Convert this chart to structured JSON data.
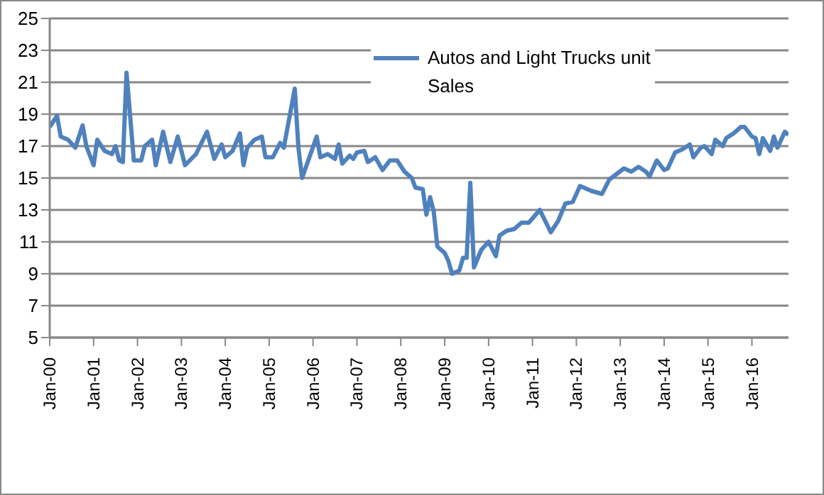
{
  "chart_data": {
    "type": "line",
    "x": [
      "2000-01",
      "2000-03",
      "2000-04",
      "2000-06",
      "2000-08",
      "2000-10",
      "2000-11",
      "2001-01",
      "2001-02",
      "2001-04",
      "2001-06",
      "2001-07",
      "2001-08",
      "2001-09",
      "2001-10",
      "2001-12",
      "2002-02",
      "2002-03",
      "2002-05",
      "2002-06",
      "2002-08",
      "2002-10",
      "2002-12",
      "2003-02",
      "2003-05",
      "2003-08",
      "2003-10",
      "2003-12",
      "2004-01",
      "2004-03",
      "2004-05",
      "2004-06",
      "2004-07",
      "2004-09",
      "2004-11",
      "2004-12",
      "2005-02",
      "2005-04",
      "2005-05",
      "2005-08",
      "2005-09",
      "2005-10",
      "2006-02",
      "2006-03",
      "2006-05",
      "2006-07",
      "2006-08",
      "2006-09",
      "2006-11",
      "2006-12",
      "2007-01",
      "2007-03",
      "2007-04",
      "2007-06",
      "2007-08",
      "2007-10",
      "2007-12",
      "2008-02",
      "2008-04",
      "2008-05",
      "2008-07",
      "2008-08",
      "2008-09",
      "2008-10",
      "2008-11",
      "2009-01",
      "2009-02",
      "2009-03",
      "2009-05",
      "2009-06",
      "2009-07",
      "2009-08",
      "2009-09",
      "2009-11",
      "2010-01",
      "2010-03",
      "2010-04",
      "2010-06",
      "2010-08",
      "2010-10",
      "2010-12",
      "2011-03",
      "2011-06",
      "2011-08",
      "2011-10",
      "2011-12",
      "2012-02",
      "2012-05",
      "2012-08",
      "2012-10",
      "2013-02",
      "2013-04",
      "2013-06",
      "2013-08",
      "2013-09",
      "2013-11",
      "2014-01",
      "2014-02",
      "2014-04",
      "2014-06",
      "2014-08",
      "2014-09",
      "2014-11",
      "2014-12",
      "2015-02",
      "2015-03",
      "2015-05",
      "2015-06",
      "2015-08",
      "2015-10",
      "2015-11",
      "2016-01",
      "2016-02",
      "2016-03",
      "2016-04",
      "2016-06",
      "2016-07",
      "2016-08",
      "2016-10",
      "2016-11"
    ],
    "series": [
      {
        "name": "Autos and Light Trucks unit Sales",
        "color": "#4f81bd",
        "values": [
          18.2,
          18.9,
          17.6,
          17.4,
          16.9,
          18.3,
          17.0,
          15.8,
          17.4,
          16.7,
          16.5,
          17.0,
          16.1,
          16.0,
          21.6,
          16.1,
          16.1,
          17.0,
          17.4,
          15.8,
          17.9,
          16.0,
          17.6,
          15.8,
          16.5,
          17.9,
          16.2,
          17.1,
          16.3,
          16.7,
          17.8,
          15.8,
          16.9,
          17.4,
          17.6,
          16.3,
          16.3,
          17.2,
          16.9,
          20.6,
          16.9,
          15.0,
          17.6,
          16.3,
          16.5,
          16.2,
          17.1,
          15.9,
          16.4,
          16.2,
          16.6,
          16.7,
          16.0,
          16.3,
          15.5,
          16.1,
          16.1,
          15.4,
          15.0,
          14.4,
          14.3,
          12.7,
          13.8,
          12.9,
          10.7,
          10.3,
          9.8,
          9.0,
          9.2,
          10.0,
          10.0,
          14.7,
          9.4,
          10.5,
          11.0,
          10.1,
          11.4,
          11.7,
          11.8,
          12.2,
          12.2,
          13.0,
          11.6,
          12.3,
          13.4,
          13.5,
          14.5,
          14.2,
          14.0,
          14.9,
          15.6,
          15.4,
          15.7,
          15.4,
          15.1,
          16.1,
          15.5,
          15.6,
          16.6,
          16.8,
          17.1,
          16.3,
          16.9,
          17.0,
          16.5,
          17.4,
          17.0,
          17.5,
          17.8,
          18.2,
          18.2,
          17.6,
          17.5,
          16.5,
          17.5,
          16.7,
          17.6,
          16.9,
          17.9,
          17.7
        ]
      }
    ],
    "xlim": [
      "2000-01",
      "2016-11"
    ],
    "xticks": [
      {
        "value": "2000-01",
        "label": "Jan-00"
      },
      {
        "value": "2001-01",
        "label": "Jan-01"
      },
      {
        "value": "2002-01",
        "label": "Jan-02"
      },
      {
        "value": "2003-01",
        "label": "Jan-03"
      },
      {
        "value": "2004-01",
        "label": "Jan-04"
      },
      {
        "value": "2005-01",
        "label": "Jan-05"
      },
      {
        "value": "2006-01",
        "label": "Jan-06"
      },
      {
        "value": "2007-01",
        "label": "Jan-07"
      },
      {
        "value": "2008-01",
        "label": "Jan-08"
      },
      {
        "value": "2009-01",
        "label": "Jan-09"
      },
      {
        "value": "2010-01",
        "label": "Jan-10"
      },
      {
        "value": "2011-01",
        "label": "Jan-11"
      },
      {
        "value": "2012-01",
        "label": "Jan-12"
      },
      {
        "value": "2013-01",
        "label": "Jan-13"
      },
      {
        "value": "2014-01",
        "label": "Jan-14"
      },
      {
        "value": "2015-01",
        "label": "Jan-15"
      },
      {
        "value": "2016-01",
        "label": "Jan-16"
      }
    ],
    "ylim": [
      5,
      25
    ],
    "yticks": [
      5,
      7,
      9,
      11,
      13,
      15,
      17,
      19,
      21,
      23,
      25
    ],
    "grid": "y",
    "legend": "top",
    "marker": "none",
    "line_style": "solid"
  }
}
